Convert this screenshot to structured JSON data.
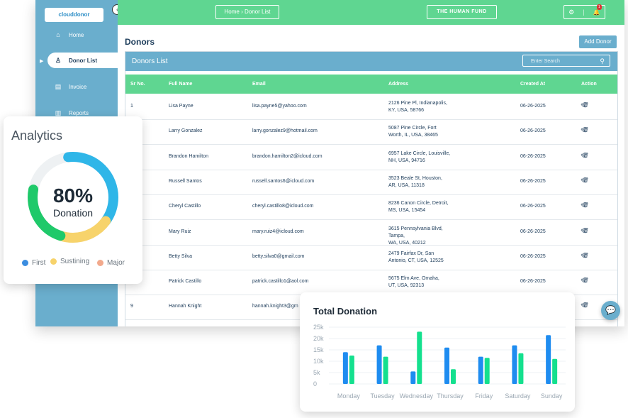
{
  "sidebar": {
    "logo_text": "clouddonor",
    "collapse_icon": "‹",
    "items": [
      {
        "label": "Home",
        "icon": "⌂"
      },
      {
        "label": "Donor List",
        "icon": "♙"
      },
      {
        "label": "Invoice",
        "icon": "▤"
      },
      {
        "label": "Reports",
        "icon": "▥"
      }
    ]
  },
  "topbar": {
    "breadcrumb": "Home  ›  Donor List",
    "org_button": "THE HUMAN FUND",
    "settings_icon": "⚙",
    "bell_icon": "🔔",
    "notification_count": "1"
  },
  "page": {
    "title": "Donors",
    "add_button": "Add Donor"
  },
  "donors_list": {
    "title": "Donors List",
    "search_placeholder": "Enter Search",
    "columns": [
      "Sr No.",
      "Full Name",
      "Email",
      "Address",
      "Created At",
      "Action"
    ],
    "rows": [
      {
        "sr": "1",
        "name": "Lisa Payne",
        "email": "lisa.payne5@yahoo.com",
        "addr1": "2126 Pine Pl, Indianapolis,",
        "addr2": "KY, USA, 58766",
        "created": "06-26-2025"
      },
      {
        "sr": "",
        "name": "Larry Gonzalez",
        "email": "larry.gonzalez9@hotmail.com",
        "addr1": "5087 Pine Circle, Fort",
        "addr2": "Worth, IL, USA, 38465",
        "created": "06-26-2025"
      },
      {
        "sr": "",
        "name": "Brandon Hamilton",
        "email": "brandon.hamilton2@icloud.com",
        "addr1": "6957 Lake Circle, Louisville,",
        "addr2": "NH, USA, 94716",
        "created": "06-26-2025"
      },
      {
        "sr": "",
        "name": "Russell Santos",
        "email": "russell.santos6@icloud.com",
        "addr1": "3523 Beale St, Houston,",
        "addr2": "AR, USA, 11318",
        "created": "06-26-2025"
      },
      {
        "sr": "",
        "name": "Cheryl Castillo",
        "email": "cheryl.castillo8@icloud.com",
        "addr1": "8236 Canon Circle, Detroit,",
        "addr2": "MS, USA, 15454",
        "created": "06-26-2025"
      },
      {
        "sr": "",
        "name": "Mary Ruiz",
        "email": "mary.ruiz4@icloud.com",
        "addr1": "3615 Pennsylvania Blvd, Tampa,",
        "addr2": "WA, USA, 40212",
        "created": "06-26-2025"
      },
      {
        "sr": "",
        "name": "Betty Silva",
        "email": "betty.silva0@gmail.com",
        "addr1": "2479 Fairfax Dr, San",
        "addr2": "Antonio, CT, USA, 12525",
        "created": "06-26-2025"
      },
      {
        "sr": "",
        "name": "Patrick Castillo",
        "email": "patrick.castillo1@aol.com",
        "addr1": "5675 Elm Ave, Omaha,",
        "addr2": "UT, USA, 92313",
        "created": "06-26-2025"
      },
      {
        "sr": "9",
        "name": "Hannah Knight",
        "email": "hannah.knight3@gm",
        "addr1": "",
        "addr2": "",
        "created": ""
      }
    ],
    "edit_icon": "✎",
    "delete_icon": "🗑"
  },
  "analytics": {
    "title": "Analytics",
    "percent": "80%",
    "percent_label": "Donation",
    "legend": [
      {
        "label": "First",
        "color": "#3b8de0"
      },
      {
        "label": "Sustining",
        "color": "#f7d36b"
      },
      {
        "label": "Major",
        "color": "#f2a98c"
      }
    ],
    "segments": [
      {
        "name": "blue",
        "color": "#2fb6e8",
        "fraction": 0.37
      },
      {
        "name": "yellow",
        "color": "#f7d36b",
        "fraction": 0.2
      },
      {
        "name": "green",
        "color": "#1fc96a",
        "fraction": 0.23
      }
    ],
    "track_color": "#eef1f3"
  },
  "chart_data": {
    "type": "bar",
    "title": "Total Donation",
    "categories": [
      "Monday",
      "Tuesday",
      "Wednesday",
      "Thursday",
      "Friday",
      "Saturday",
      "Sunday"
    ],
    "yticks": [
      "0",
      "5k",
      "10k",
      "15k",
      "20k",
      "25k"
    ],
    "ylim": [
      0,
      25000
    ],
    "series": [
      {
        "values": [
          14000,
          17000,
          5500,
          16000,
          12000,
          17000,
          21500
        ],
        "color": "#1e8cf0"
      },
      {
        "values": [
          12500,
          12000,
          23000,
          6500,
          11500,
          13500,
          11000
        ],
        "color": "#14e08e"
      }
    ]
  },
  "chat_icon": "💬"
}
